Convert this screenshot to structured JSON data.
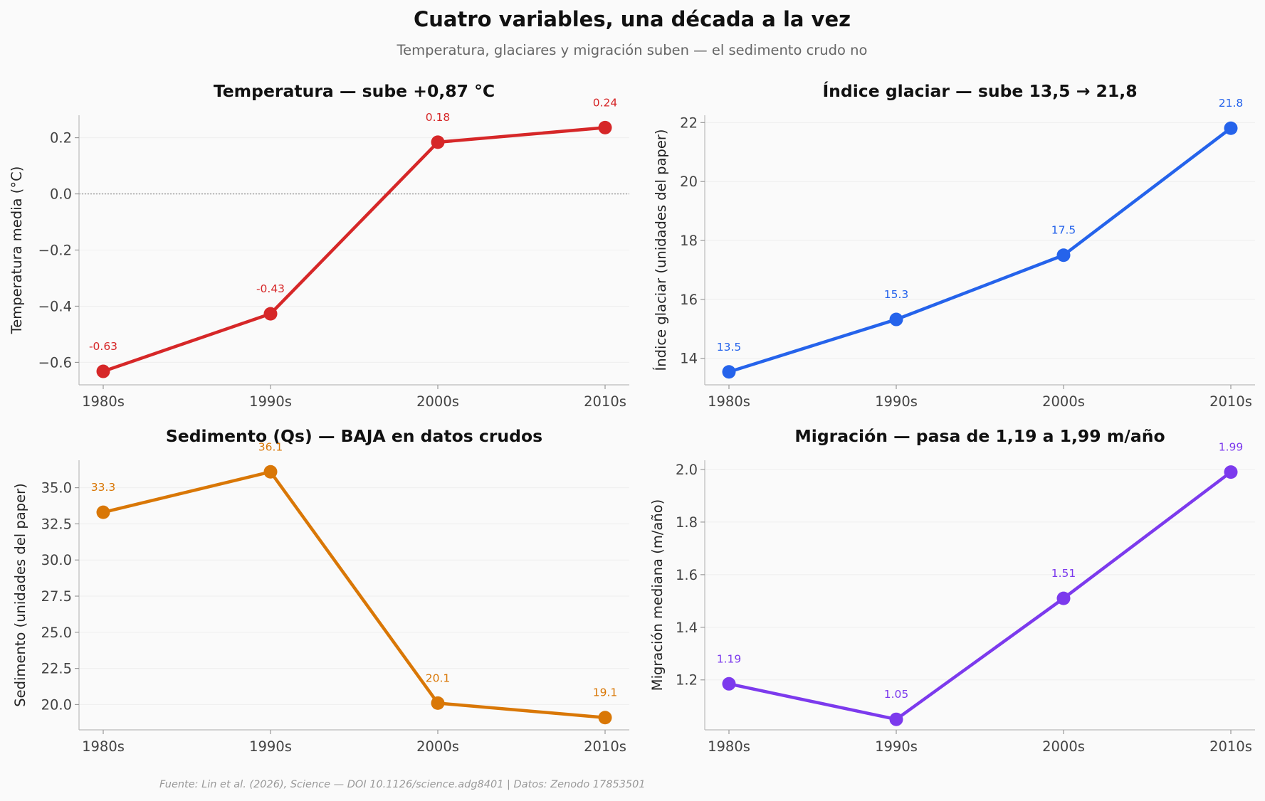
{
  "figure": {
    "title": "Cuatro variables, una década a la vez",
    "subtitle": "Temperatura, glaciares y migración suben — el sedimento crudo no",
    "source": "Fuente: Lin et al. (2026), Science — DOI 10.1126/science.adg8401 | Datos: Zenodo 17853501"
  },
  "chart_data": [
    {
      "type": "line",
      "title": "Temperatura — sube +0,87 °C",
      "ylabel": "Temperatura media (°C)",
      "categories": [
        "1980s",
        "1990s",
        "2000s",
        "2010s"
      ],
      "values": [
        -0.632,
        -0.427,
        0.184,
        0.236
      ],
      "data_labels": [
        "-0.63",
        "-0.43",
        "0.18",
        "0.24"
      ],
      "ylim": [
        -0.68,
        0.28
      ],
      "yticks": [
        0.2,
        0.0,
        -0.2,
        -0.4,
        -0.6
      ],
      "ytick_labels": [
        "0.2",
        "0.0",
        "−0.2",
        "−0.4",
        "−0.6"
      ],
      "reference_line": 0,
      "color": "#d62728"
    },
    {
      "type": "line",
      "title": "Índice glaciar — sube 13,5 → 21,8",
      "ylabel": "Índice glaciar (unidades del paper)",
      "categories": [
        "1980s",
        "1990s",
        "2000s",
        "2010s"
      ],
      "values": [
        13.54,
        15.32,
        17.5,
        21.81
      ],
      "data_labels": [
        "13.5",
        "15.3",
        "17.5",
        "21.8"
      ],
      "ylim": [
        13.1,
        22.25
      ],
      "yticks": [
        22,
        20,
        18,
        16,
        14
      ],
      "ytick_labels": [
        "22",
        "20",
        "18",
        "16",
        "14"
      ],
      "color": "#2563eb"
    },
    {
      "type": "line",
      "title": "Sedimento (Qs) — BAJA en datos crudos",
      "ylabel": "Sedimento (unidades del paper)",
      "categories": [
        "1980s",
        "1990s",
        "2000s",
        "2010s"
      ],
      "values": [
        33.3,
        36.1,
        20.1,
        19.1
      ],
      "data_labels": [
        "33.3",
        "36.1",
        "20.1",
        "19.1"
      ],
      "ylim": [
        18.25,
        36.9
      ],
      "yticks": [
        35.0,
        32.5,
        30.0,
        27.5,
        25.0,
        22.5,
        20.0
      ],
      "ytick_labels": [
        "35.0",
        "32.5",
        "30.0",
        "27.5",
        "25.0",
        "22.5",
        "20.0"
      ],
      "color": "#d97706"
    },
    {
      "type": "line",
      "title": "Migración — pasa de 1,19 a 1,99 m/año",
      "ylabel": "Migración mediana (m/año)",
      "categories": [
        "1980s",
        "1990s",
        "2000s",
        "2010s"
      ],
      "values": [
        1.185,
        1.05,
        1.51,
        1.99
      ],
      "data_labels": [
        "1.19",
        "1.05",
        "1.51",
        "1.99"
      ],
      "ylim": [
        1.01,
        2.035
      ],
      "yticks": [
        2.0,
        1.8,
        1.6,
        1.4,
        1.2
      ],
      "ytick_labels": [
        "2.0",
        "1.8",
        "1.6",
        "1.4",
        "1.2"
      ],
      "color": "#7c3aed"
    }
  ]
}
